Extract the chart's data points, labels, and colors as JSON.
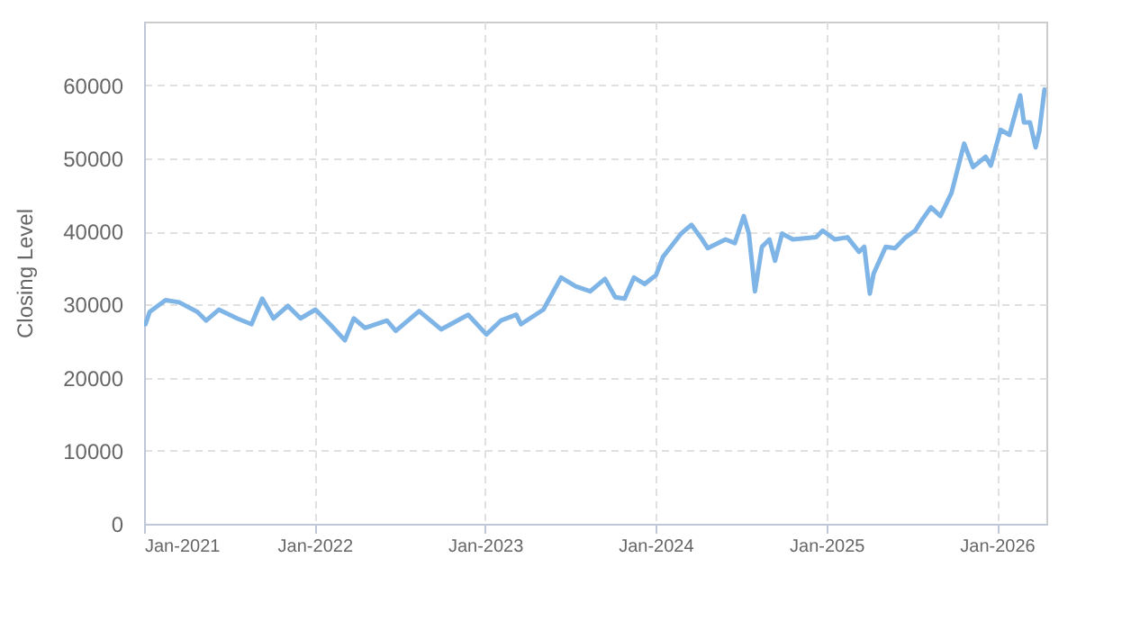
{
  "chart_data": {
    "type": "line",
    "ylabel": "Closing Level",
    "grid": true,
    "marker": "none",
    "line_style": "solid",
    "xlim": [
      "2021-01-01",
      "2026-04-17"
    ],
    "ylim": [
      0,
      68700
    ],
    "xticks": [
      {
        "value": "2021-01-01",
        "label": "Jan-2021"
      },
      {
        "value": "2022-01-01",
        "label": "Jan-2022"
      },
      {
        "value": "2023-01-01",
        "label": "Jan-2023"
      },
      {
        "value": "2024-01-01",
        "label": "Jan-2024"
      },
      {
        "value": "2025-01-01",
        "label": "Jan-2025"
      },
      {
        "value": "2026-01-01",
        "label": "Jan-2026"
      }
    ],
    "yticks": [
      0,
      10000,
      20000,
      30000,
      40000,
      50000,
      60000
    ],
    "x": [
      "2021-01-04",
      "2021-01-13",
      "2021-02-16",
      "2021-03-17",
      "2021-04-25",
      "2021-05-14",
      "2021-06-10",
      "2021-07-19",
      "2021-08-19",
      "2021-09-11",
      "2021-10-05",
      "2021-11-05",
      "2021-12-02",
      "2022-01-03",
      "2022-02-03",
      "2022-03-07",
      "2022-03-26",
      "2022-04-19",
      "2022-06-05",
      "2022-06-24",
      "2022-08-13",
      "2022-09-29",
      "2022-11-26",
      "2023-01-04",
      "2023-02-04",
      "2023-03-09",
      "2023-03-19",
      "2023-05-06",
      "2023-06-13",
      "2023-07-14",
      "2023-08-14",
      "2023-09-15",
      "2023-10-07",
      "2023-10-27",
      "2023-11-16",
      "2023-12-09",
      "2024-01-02",
      "2024-01-17",
      "2024-02-25",
      "2024-03-18",
      "2024-04-10",
      "2024-04-22",
      "2024-05-30",
      "2024-06-19",
      "2024-07-08",
      "2024-07-19",
      "2024-08-01",
      "2024-08-16",
      "2024-09-01",
      "2024-09-13",
      "2024-09-28",
      "2024-10-21",
      "2024-12-10",
      "2024-12-24",
      "2025-01-19",
      "2025-02-15",
      "2025-03-12",
      "2025-03-23",
      "2025-04-04",
      "2025-04-12",
      "2025-05-08",
      "2025-05-28",
      "2025-06-20",
      "2025-07-10",
      "2025-07-25",
      "2025-08-13",
      "2025-09-02",
      "2025-09-26",
      "2025-10-23",
      "2025-11-11",
      "2025-12-08",
      "2025-12-19",
      "2026-01-09",
      "2026-01-28",
      "2026-02-20",
      "2026-02-28",
      "2026-03-13",
      "2026-03-25",
      "2026-04-02",
      "2026-04-13"
    ],
    "series": [
      {
        "color": "#7fb5e6",
        "values": [
          27300,
          29000,
          30600,
          30300,
          29000,
          27800,
          29300,
          28100,
          27300,
          30800,
          28100,
          29800,
          28100,
          29300,
          27300,
          25100,
          28100,
          26800,
          27800,
          26400,
          29100,
          26600,
          28600,
          25900,
          27800,
          28600,
          27300,
          29300,
          33700,
          32500,
          31800,
          33500,
          31000,
          30800,
          33700,
          32800,
          34000,
          36500,
          39700,
          40900,
          38900,
          37700,
          38900,
          38400,
          42100,
          39700,
          31800,
          37900,
          38900,
          36000,
          39700,
          38900,
          39200,
          40100,
          38900,
          39200,
          37200,
          37900,
          31500,
          34200,
          37900,
          37700,
          39200,
          40100,
          41600,
          43300,
          42100,
          45300,
          52000,
          48800,
          50200,
          49000,
          53900,
          53200,
          58600,
          54900,
          54900,
          51500,
          53700,
          59400
        ]
      }
    ]
  }
}
